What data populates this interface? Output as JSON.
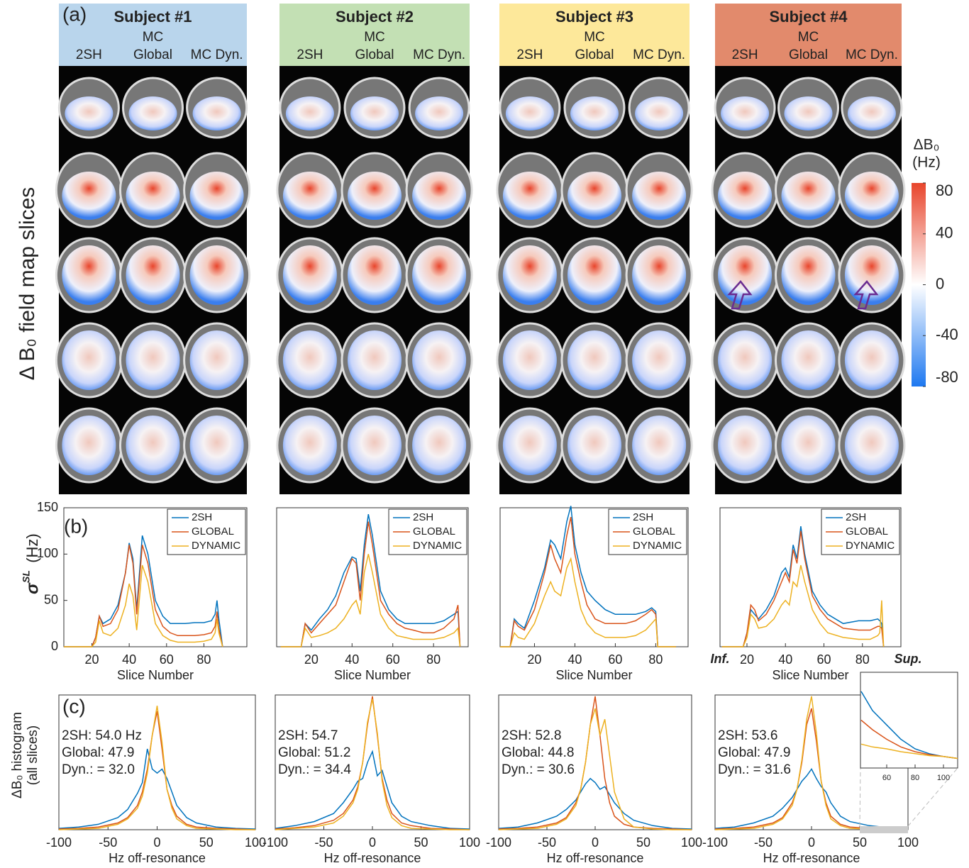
{
  "panel_a": {
    "label": "(a)",
    "y_label": "Δ B₀ field map slices",
    "subjects": [
      {
        "title": "Subject #1",
        "color": "#b9d5ec",
        "columns": [
          [
            "2SH"
          ],
          [
            "MC",
            "Global"
          ],
          [
            "MC Dyn."
          ]
        ]
      },
      {
        "title": "Subject #2",
        "color": "#c3e0b4",
        "columns": [
          [
            "2SH"
          ],
          [
            "MC",
            "Global"
          ],
          [
            "MC Dyn."
          ]
        ]
      },
      {
        "title": "Subject #3",
        "color": "#fde89a",
        "columns": [
          [
            "2SH"
          ],
          [
            "MC",
            "Global"
          ],
          [
            "MC Dyn."
          ]
        ]
      },
      {
        "title": "Subject #4",
        "color": "#e28a6c",
        "columns": [
          [
            "2SH"
          ],
          [
            "MC",
            "Global"
          ],
          [
            "MC Dyn."
          ]
        ]
      }
    ]
  },
  "chart_data": [
    {
      "type": "colorbar",
      "title": [
        "ΔB₀",
        "(Hz)"
      ],
      "ylim": [
        -80,
        80
      ],
      "yticks": [
        80,
        40,
        0,
        -40,
        -80
      ],
      "colors": [
        "#1e78f0",
        "#ffffff",
        "#e8452c"
      ]
    },
    {
      "type": "line",
      "panel_label": "(b)",
      "y_label": "σ",
      "y_label_sup": "SL",
      "y_label_unit": "(Hz)",
      "x_label": "Slice Number",
      "xlim": [
        5,
        103
      ],
      "ylim": [
        0,
        150
      ],
      "xticks": [
        20,
        40,
        60,
        80
      ],
      "yticks": [
        0,
        50,
        100,
        150
      ],
      "legend": "upper right",
      "x": [
        5,
        20,
        22,
        24,
        26,
        30,
        34,
        38,
        40,
        42,
        44,
        47,
        50,
        54,
        58,
        62,
        66,
        70,
        75,
        80,
        84,
        86,
        87,
        88,
        90
      ],
      "series": [
        {
          "name": "2SH",
          "color": "#0072bd",
          "values": [
            0,
            0,
            10,
            33,
            25,
            30,
            45,
            80,
            112,
            95,
            40,
            120,
            100,
            50,
            33,
            25,
            25,
            25,
            26,
            26,
            28,
            35,
            50,
            30,
            0
          ]
        },
        {
          "name": "GLOBAL",
          "color": "#d95319",
          "values": [
            0,
            0,
            10,
            33,
            22,
            25,
            40,
            80,
            110,
            90,
            35,
            110,
            90,
            40,
            22,
            15,
            12,
            12,
            12,
            13,
            15,
            22,
            38,
            20,
            0
          ]
        },
        {
          "name": "DYNAMIC",
          "color": "#edb120",
          "values": [
            0,
            0,
            5,
            28,
            15,
            12,
            20,
            45,
            68,
            55,
            18,
            88,
            70,
            25,
            12,
            7,
            5,
            5,
            5,
            6,
            8,
            15,
            30,
            15,
            0
          ]
        }
      ]
    },
    {
      "type": "line",
      "x_label": "Slice Number",
      "xlim": [
        3,
        97
      ],
      "ylim": [
        0,
        150
      ],
      "xticks": [
        20,
        40,
        60,
        80
      ],
      "legend": "upper right",
      "x": [
        5,
        15,
        17,
        20,
        24,
        28,
        32,
        36,
        40,
        42,
        44,
        46,
        48,
        50,
        54,
        58,
        62,
        66,
        70,
        75,
        80,
        85,
        90,
        92,
        93
      ],
      "series": [
        {
          "name": "2SH",
          "color": "#0072bd",
          "values": [
            0,
            0,
            25,
            18,
            30,
            40,
            55,
            80,
            97,
            95,
            60,
            110,
            143,
            120,
            60,
            40,
            30,
            25,
            25,
            25,
            25,
            28,
            35,
            38,
            0
          ]
        },
        {
          "name": "GLOBAL",
          "color": "#d95319",
          "values": [
            0,
            0,
            25,
            15,
            25,
            35,
            45,
            70,
            95,
            90,
            50,
            100,
            135,
            110,
            50,
            35,
            25,
            20,
            18,
            15,
            15,
            20,
            30,
            45,
            0
          ]
        },
        {
          "name": "DYNAMIC",
          "color": "#edb120",
          "values": [
            0,
            0,
            20,
            10,
            12,
            15,
            20,
            30,
            45,
            50,
            35,
            80,
            100,
            80,
            35,
            20,
            12,
            10,
            8,
            8,
            8,
            10,
            15,
            20,
            0
          ]
        }
      ]
    },
    {
      "type": "line",
      "x_label": "Slice Number",
      "xlim": [
        3,
        96
      ],
      "ylim": [
        0,
        150
      ],
      "xticks": [
        20,
        40,
        60,
        80
      ],
      "legend": "upper right",
      "x": [
        3,
        8,
        10,
        12,
        15,
        20,
        25,
        28,
        30,
        33,
        36,
        38,
        40,
        43,
        46,
        50,
        55,
        60,
        65,
        70,
        75,
        78,
        80,
        81,
        90
      ],
      "series": [
        {
          "name": "2SH",
          "color": "#0072bd",
          "values": [
            0,
            0,
            30,
            25,
            20,
            50,
            85,
            115,
            110,
            95,
            135,
            152,
            110,
            80,
            60,
            50,
            40,
            35,
            35,
            35,
            38,
            42,
            38,
            0,
            0
          ]
        },
        {
          "name": "GLOBAL",
          "color": "#d95319",
          "values": [
            0,
            0,
            28,
            22,
            18,
            40,
            80,
            110,
            95,
            80,
            120,
            140,
            100,
            70,
            45,
            30,
            25,
            25,
            25,
            28,
            35,
            40,
            35,
            0,
            0
          ]
        },
        {
          "name": "DYNAMIC",
          "color": "#edb120",
          "values": [
            0,
            0,
            15,
            10,
            8,
            25,
            55,
            70,
            60,
            55,
            85,
            95,
            70,
            40,
            25,
            15,
            10,
            10,
            10,
            12,
            18,
            25,
            30,
            0,
            0
          ]
        }
      ]
    },
    {
      "type": "line",
      "x_label": "Slice Number",
      "annotations": [
        "Inf.",
        "Sup."
      ],
      "xlim": [
        6,
        100
      ],
      "ylim": [
        0,
        150
      ],
      "xticks": [
        20,
        40,
        60,
        80
      ],
      "legend": "upper right",
      "x": [
        7,
        18,
        20,
        22,
        24,
        26,
        30,
        34,
        38,
        40,
        42,
        44,
        46,
        48,
        50,
        54,
        58,
        62,
        70,
        78,
        84,
        88,
        89,
        90,
        91
      ],
      "series": [
        {
          "name": "2SH",
          "color": "#0072bd",
          "values": [
            0,
            0,
            15,
            40,
            35,
            30,
            40,
            55,
            80,
            85,
            75,
            110,
            95,
            130,
            100,
            60,
            45,
            35,
            25,
            28,
            28,
            30,
            28,
            25,
            0
          ]
        },
        {
          "name": "GLOBAL",
          "color": "#d95319",
          "values": [
            0,
            0,
            15,
            45,
            40,
            28,
            35,
            50,
            70,
            80,
            70,
            105,
            90,
            125,
            95,
            55,
            40,
            30,
            20,
            18,
            18,
            22,
            22,
            20,
            0
          ]
        },
        {
          "name": "DYNAMIC",
          "color": "#edb120",
          "values": [
            0,
            0,
            10,
            35,
            30,
            20,
            22,
            30,
            45,
            50,
            45,
            70,
            65,
            88,
            70,
            40,
            25,
            15,
            10,
            8,
            8,
            12,
            15,
            50,
            0
          ]
        }
      ]
    },
    {
      "type": "line",
      "panel_label": "(c)",
      "y_label": [
        "ΔB₀ histogram",
        "(all slices)"
      ],
      "x_label": "Hz off-resonance",
      "annotations": [
        "2SH: 54.0 Hz",
        "Global: 47.9",
        "Dyn.: = 32.0"
      ],
      "xlim": [
        -100,
        100
      ],
      "ylim": [
        0,
        1
      ],
      "xticks": [
        -100,
        -50,
        0,
        50,
        100
      ],
      "x": [
        -100,
        -80,
        -60,
        -40,
        -30,
        -20,
        -15,
        -10,
        -5,
        0,
        5,
        10,
        15,
        20,
        30,
        40,
        60,
        80,
        100
      ],
      "series": [
        {
          "name": "2SH",
          "color": "#0072bd",
          "values": [
            0.01,
            0.02,
            0.04,
            0.09,
            0.15,
            0.27,
            0.35,
            0.6,
            0.45,
            0.42,
            0.45,
            0.38,
            0.28,
            0.18,
            0.09,
            0.05,
            0.02,
            0.01,
            0.005
          ]
        },
        {
          "name": "GLOBAL",
          "color": "#d95319",
          "values": [
            0.005,
            0.01,
            0.02,
            0.05,
            0.09,
            0.18,
            0.28,
            0.45,
            0.7,
            0.88,
            0.6,
            0.3,
            0.18,
            0.1,
            0.04,
            0.02,
            0.01,
            0.005,
            0
          ]
        },
        {
          "name": "DYNAMIC",
          "color": "#edb120",
          "values": [
            0,
            0.005,
            0.01,
            0.04,
            0.08,
            0.16,
            0.25,
            0.42,
            0.7,
            0.92,
            0.65,
            0.3,
            0.16,
            0.08,
            0.03,
            0.01,
            0.005,
            0,
            0
          ]
        }
      ]
    },
    {
      "type": "line",
      "x_label": "Hz off-resonance",
      "annotations": [
        "2SH: 54.7",
        "Global: 51.2",
        "Dyn.: = 34.4"
      ],
      "xlim": [
        -100,
        100
      ],
      "ylim": [
        0,
        1
      ],
      "xticks": [
        -100,
        -50,
        0,
        50,
        100
      ],
      "x": [
        -100,
        -80,
        -60,
        -40,
        -30,
        -20,
        -15,
        -10,
        -5,
        0,
        5,
        10,
        15,
        20,
        30,
        40,
        60,
        80,
        100
      ],
      "series": [
        {
          "name": "2SH",
          "color": "#0072bd",
          "values": [
            0.01,
            0.03,
            0.06,
            0.12,
            0.2,
            0.3,
            0.36,
            0.38,
            0.5,
            0.58,
            0.4,
            0.44,
            0.32,
            0.2,
            0.1,
            0.06,
            0.03,
            0.01,
            0.005
          ]
        },
        {
          "name": "GLOBAL",
          "color": "#d95319",
          "values": [
            0.005,
            0.015,
            0.03,
            0.07,
            0.12,
            0.22,
            0.32,
            0.5,
            0.78,
            0.99,
            0.7,
            0.38,
            0.22,
            0.12,
            0.05,
            0.03,
            0.01,
            0.005,
            0
          ]
        },
        {
          "name": "DYNAMIC",
          "color": "#edb120",
          "values": [
            0,
            0.01,
            0.02,
            0.05,
            0.1,
            0.2,
            0.3,
            0.5,
            0.8,
            0.97,
            0.72,
            0.36,
            0.18,
            0.09,
            0.03,
            0.01,
            0.005,
            0,
            0
          ]
        }
      ]
    },
    {
      "type": "line",
      "x_label": "Hz off-resonance",
      "annotations": [
        "2SH: 52.8",
        "Global: 44.8",
        "Dyn.: = 30.6"
      ],
      "xlim": [
        -100,
        100
      ],
      "ylim": [
        0,
        1
      ],
      "xticks": [
        -100,
        -50,
        0,
        50,
        100
      ],
      "x": [
        -100,
        -80,
        -60,
        -40,
        -30,
        -20,
        -15,
        -10,
        -5,
        0,
        5,
        10,
        15,
        20,
        30,
        40,
        60,
        80,
        100
      ],
      "series": [
        {
          "name": "2SH",
          "color": "#0072bd",
          "values": [
            0.01,
            0.02,
            0.05,
            0.1,
            0.15,
            0.22,
            0.28,
            0.34,
            0.38,
            0.35,
            0.3,
            0.32,
            0.26,
            0.2,
            0.12,
            0.07,
            0.03,
            0.01,
            0.005
          ]
        },
        {
          "name": "GLOBAL",
          "color": "#d95319",
          "values": [
            0.005,
            0.01,
            0.02,
            0.05,
            0.09,
            0.2,
            0.3,
            0.5,
            0.78,
            0.99,
            0.7,
            0.38,
            0.2,
            0.1,
            0.04,
            0.02,
            0.01,
            0.005,
            0
          ]
        },
        {
          "name": "DYNAMIC",
          "color": "#edb120",
          "values": [
            0,
            0.005,
            0.01,
            0.04,
            0.08,
            0.18,
            0.3,
            0.5,
            0.78,
            0.9,
            0.7,
            0.82,
            0.55,
            0.28,
            0.08,
            0.02,
            0.005,
            0,
            0
          ]
        }
      ]
    },
    {
      "type": "line",
      "x_label": "Hz off-resonance",
      "annotations": [
        "2SH: 53.6",
        "Global: 47.9",
        "Dyn.: = 31.6"
      ],
      "xlim": [
        -100,
        100
      ],
      "ylim": [
        0,
        1
      ],
      "xticks": [
        -100,
        -50,
        0,
        50,
        100
      ],
      "x": [
        -100,
        -80,
        -60,
        -40,
        -30,
        -20,
        -15,
        -10,
        -5,
        0,
        5,
        10,
        15,
        20,
        30,
        40,
        60,
        80,
        100
      ],
      "series": [
        {
          "name": "2SH",
          "color": "#0072bd",
          "values": [
            0.01,
            0.02,
            0.05,
            0.1,
            0.16,
            0.24,
            0.3,
            0.36,
            0.4,
            0.45,
            0.38,
            0.32,
            0.28,
            0.2,
            0.1,
            0.06,
            0.03,
            0.015,
            0.01
          ]
        },
        {
          "name": "GLOBAL",
          "color": "#d95319",
          "values": [
            0.005,
            0.01,
            0.02,
            0.05,
            0.09,
            0.2,
            0.3,
            0.5,
            0.78,
            0.9,
            0.66,
            0.36,
            0.2,
            0.1,
            0.04,
            0.02,
            0.01,
            0.005,
            0.003
          ]
        },
        {
          "name": "DYNAMIC",
          "color": "#edb120",
          "values": [
            0,
            0.005,
            0.01,
            0.04,
            0.08,
            0.18,
            0.3,
            0.52,
            0.82,
            0.99,
            0.72,
            0.36,
            0.18,
            0.08,
            0.03,
            0.01,
            0.005,
            0.002,
            0
          ]
        }
      ]
    },
    {
      "type": "line",
      "xlim": [
        41.5,
        110
      ],
      "ylim": [
        0,
        1
      ],
      "xticks": [
        60,
        80,
        100
      ],
      "x": [
        42,
        50,
        60,
        70,
        80,
        90,
        100,
        110
      ],
      "series": [
        {
          "name": "2SH",
          "color": "#0072bd",
          "values": [
            0.8,
            0.6,
            0.45,
            0.3,
            0.2,
            0.15,
            0.12,
            0.1
          ]
        },
        {
          "name": "GLOBAL",
          "color": "#d95319",
          "values": [
            0.5,
            0.4,
            0.3,
            0.22,
            0.17,
            0.14,
            0.12,
            0.1
          ]
        },
        {
          "name": "DYNAMIC",
          "color": "#edb120",
          "values": [
            0.25,
            0.22,
            0.2,
            0.17,
            0.15,
            0.13,
            0.12,
            0.1
          ]
        }
      ]
    }
  ]
}
